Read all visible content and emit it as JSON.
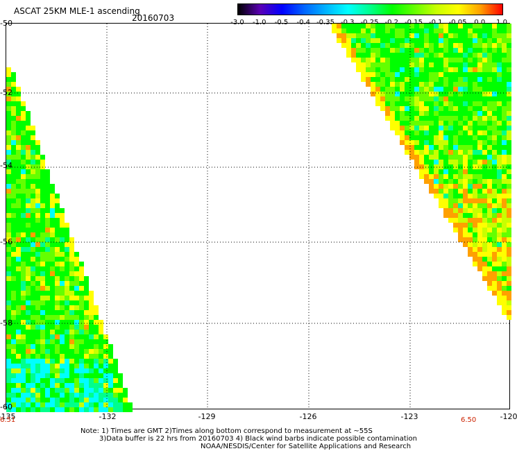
{
  "header": {
    "title": "ASCAT 25KM MLE-1 ascending",
    "date": "20160703"
  },
  "colorbar": {
    "labels": [
      "-3.0",
      "-1.0",
      "-0.5",
      "-0.4",
      "-0.35",
      "-0.3",
      "-0.25",
      "-0.2",
      "-0.15",
      "-0.1",
      "-0.05",
      "0.0",
      "1.0"
    ],
    "colors": [
      "#000000",
      "#5a00b4",
      "#0000ff",
      "#0064ff",
      "#00b4ff",
      "#00ffff",
      "#00ff8c",
      "#00ff00",
      "#64ff00",
      "#c8ff00",
      "#ffff00",
      "#ffa000",
      "#ff0000"
    ]
  },
  "map": {
    "lat_labels": [
      "-50",
      "-52",
      "-54",
      "-56",
      "-58",
      "-60"
    ],
    "lon_labels": [
      "-135",
      "-132",
      "-129",
      "-126",
      "-123",
      "-120"
    ],
    "time_labels": [
      "6.51",
      "6.50"
    ]
  },
  "notes": {
    "line1": "Note: 1) Times are GMT 2)Times along bottom correspond to measurement at ~55S",
    "line2": "3)Data buffer is 22 hrs from 20160703 4) Black wind barbs indicate possible contamination",
    "line3": "NOAA/NESDIS/Center for Satellite Applications and Research"
  }
}
